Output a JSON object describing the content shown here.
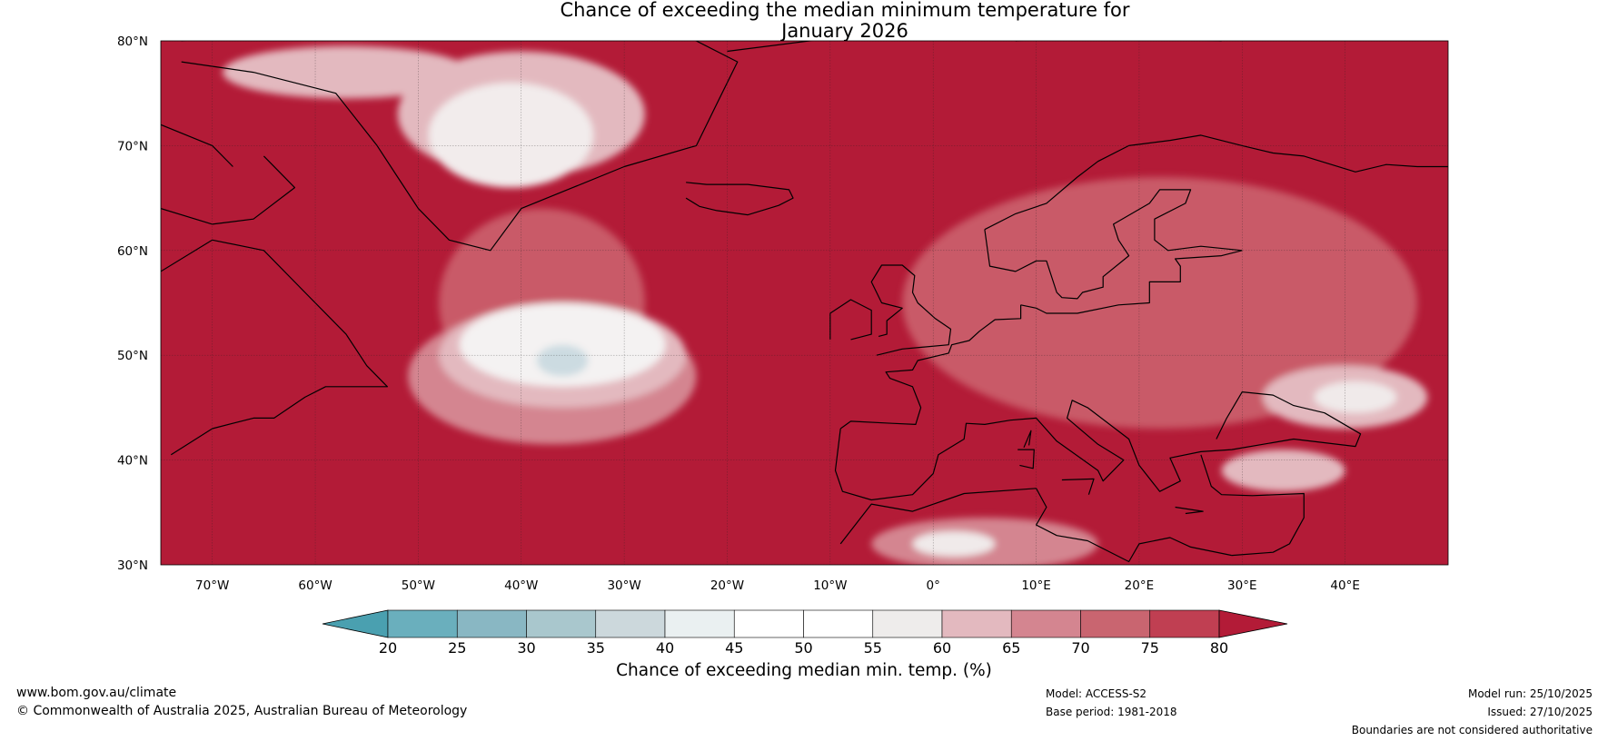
{
  "title": {
    "line1": "Chance of exceeding the median minimum temperature for",
    "line2": "January 2026"
  },
  "map": {
    "projection": "plate-carree",
    "lon_range": [
      -75,
      50
    ],
    "lat_range": [
      30,
      80
    ],
    "gridlines": true,
    "lat_ticks": [
      {
        "value": 80,
        "label": "80°N"
      },
      {
        "value": 70,
        "label": "70°N"
      },
      {
        "value": 60,
        "label": "60°N"
      },
      {
        "value": 50,
        "label": "50°N"
      },
      {
        "value": 40,
        "label": "40°N"
      },
      {
        "value": 30,
        "label": "30°N"
      }
    ],
    "lon_ticks": [
      {
        "value": -70,
        "label": "70°W"
      },
      {
        "value": -60,
        "label": "60°W"
      },
      {
        "value": -50,
        "label": "50°W"
      },
      {
        "value": -40,
        "label": "40°W"
      },
      {
        "value": -30,
        "label": "30°W"
      },
      {
        "value": -20,
        "label": "20°W"
      },
      {
        "value": -10,
        "label": "10°W"
      },
      {
        "value": 0,
        "label": "0°"
      },
      {
        "value": 10,
        "label": "10°E"
      },
      {
        "value": 20,
        "label": "20°E"
      },
      {
        "value": 30,
        "label": "30°E"
      },
      {
        "value": 40,
        "label": "40°E"
      }
    ],
    "base_color": "#b31b37",
    "land_tint": "#c95a68",
    "regions": [
      {
        "name": "greenland-interior",
        "cx": -40,
        "cy": 73,
        "rx": 12,
        "ry": 6,
        "color": "#e3b9bf"
      },
      {
        "name": "greenland-core",
        "cx": -41,
        "cy": 71,
        "rx": 8,
        "ry": 5,
        "color": "#f2ecec"
      },
      {
        "name": "davis-strait",
        "cx": -57,
        "cy": 77,
        "rx": 12,
        "ry": 2.5,
        "color": "#e3b9bf"
      },
      {
        "name": "labrador-sea-outer",
        "cx": -38,
        "cy": 55,
        "rx": 10,
        "ry": 9,
        "color": "#c95a68"
      },
      {
        "name": "atlantic-plume-outer",
        "cx": -37,
        "cy": 48,
        "rx": 14,
        "ry": 6.5,
        "color": "#d48590"
      },
      {
        "name": "atlantic-plume-mid",
        "cx": -36,
        "cy": 50,
        "rx": 12,
        "ry": 5,
        "color": "#e3b9bf"
      },
      {
        "name": "atlantic-plume-inner",
        "cx": -36,
        "cy": 51,
        "rx": 10,
        "ry": 4,
        "color": "#f4f2f2"
      },
      {
        "name": "atlantic-core",
        "cx": -36,
        "cy": 49.5,
        "rx": 2.5,
        "ry": 1.5,
        "color": "#ccdbe1"
      },
      {
        "name": "europe-land",
        "cx": 22,
        "cy": 55,
        "rx": 25,
        "ry": 12,
        "color": "#c95a68"
      },
      {
        "name": "black-sea-region",
        "cx": 40,
        "cy": 46,
        "rx": 8,
        "ry": 3,
        "color": "#e3b9bf"
      },
      {
        "name": "east-core",
        "cx": 41,
        "cy": 46,
        "rx": 4,
        "ry": 1.5,
        "color": "#f0eaea"
      },
      {
        "name": "anatolia",
        "cx": 34,
        "cy": 39,
        "rx": 6,
        "ry": 2,
        "color": "#e3b9bf"
      },
      {
        "name": "north-africa",
        "cx": 5,
        "cy": 32,
        "rx": 11,
        "ry": 2.5,
        "color": "#d48590"
      },
      {
        "name": "sahara-patch",
        "cx": 2,
        "cy": 32,
        "rx": 4,
        "ry": 1.2,
        "color": "#f0eaea"
      }
    ]
  },
  "colorbar": {
    "boundaries": [
      20,
      25,
      30,
      35,
      40,
      45,
      50,
      55,
      60,
      65,
      70,
      75,
      80
    ],
    "colors": [
      "#6aafbd",
      "#89b7c3",
      "#a9c7cd",
      "#ccd8dc",
      "#eaf0f1",
      "#ffffff",
      "#ffffff",
      "#eeeceb",
      "#e3b9bf",
      "#d48590",
      "#c96570",
      "#c03f52"
    ],
    "under_color": "#4aa0b0",
    "over_color": "#b31b37",
    "tick_labels": [
      "20",
      "25",
      "30",
      "35",
      "40",
      "45",
      "50",
      "55",
      "60",
      "65",
      "70",
      "75",
      "80"
    ],
    "label": "Chance of exceeding median min. temp. (%)"
  },
  "footer": {
    "website": "www.bom.gov.au/climate",
    "copyright": "© Commonwealth of Australia 2025, Australian Bureau of Meteorology",
    "model": "Model: ACCESS-S2",
    "base_period": "Base period: 1981-2018",
    "model_run": "Model run: 25/10/2025",
    "issued": "Issued: 27/10/2025",
    "boundaries_note": "Boundaries are not considered authoritative"
  }
}
